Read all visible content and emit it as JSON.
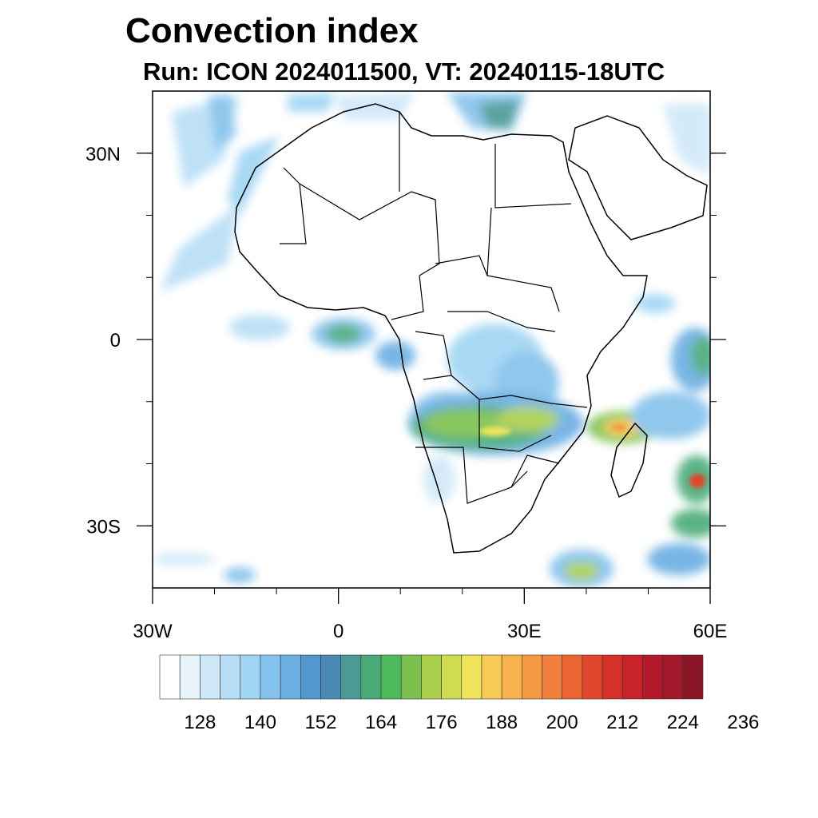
{
  "header": {
    "title": "Convection index",
    "subtitle": "Run: ICON 2024011500,  VT: 20240115-18UTC"
  },
  "map": {
    "region": "Africa",
    "lat_ticks": [
      {
        "value": 30,
        "label": "30N"
      },
      {
        "value": 0,
        "label": "0"
      },
      {
        "value": -30,
        "label": "30S"
      }
    ],
    "lon_ticks": [
      {
        "value": -30,
        "label": "30W"
      },
      {
        "value": 0,
        "label": "0"
      },
      {
        "value": 30,
        "label": "30E"
      },
      {
        "value": 60,
        "label": "60E"
      }
    ],
    "minor_tick_step_deg": 10
  },
  "colorbar": {
    "colors": [
      "#ffffff",
      "#e8f4fc",
      "#cfe8f8",
      "#b7def6",
      "#9fd4f3",
      "#84c1ec",
      "#6aaee2",
      "#5297cf",
      "#4a8ab5",
      "#4b9a94",
      "#4aab78",
      "#4db95a",
      "#7cc04f",
      "#a9cf4c",
      "#cfdc52",
      "#efe35a",
      "#f6cb55",
      "#f7b24e",
      "#f59a43",
      "#f0803b",
      "#ea6532",
      "#e0472c",
      "#d63129",
      "#c8222a",
      "#b4192b",
      "#a0182a",
      "#8a1626"
    ],
    "labels": [
      "128",
      "140",
      "152",
      "164",
      "176",
      "188",
      "200",
      "212",
      "224",
      "236"
    ],
    "label_every_n_boxes": 3,
    "label_start_box": 2
  }
}
